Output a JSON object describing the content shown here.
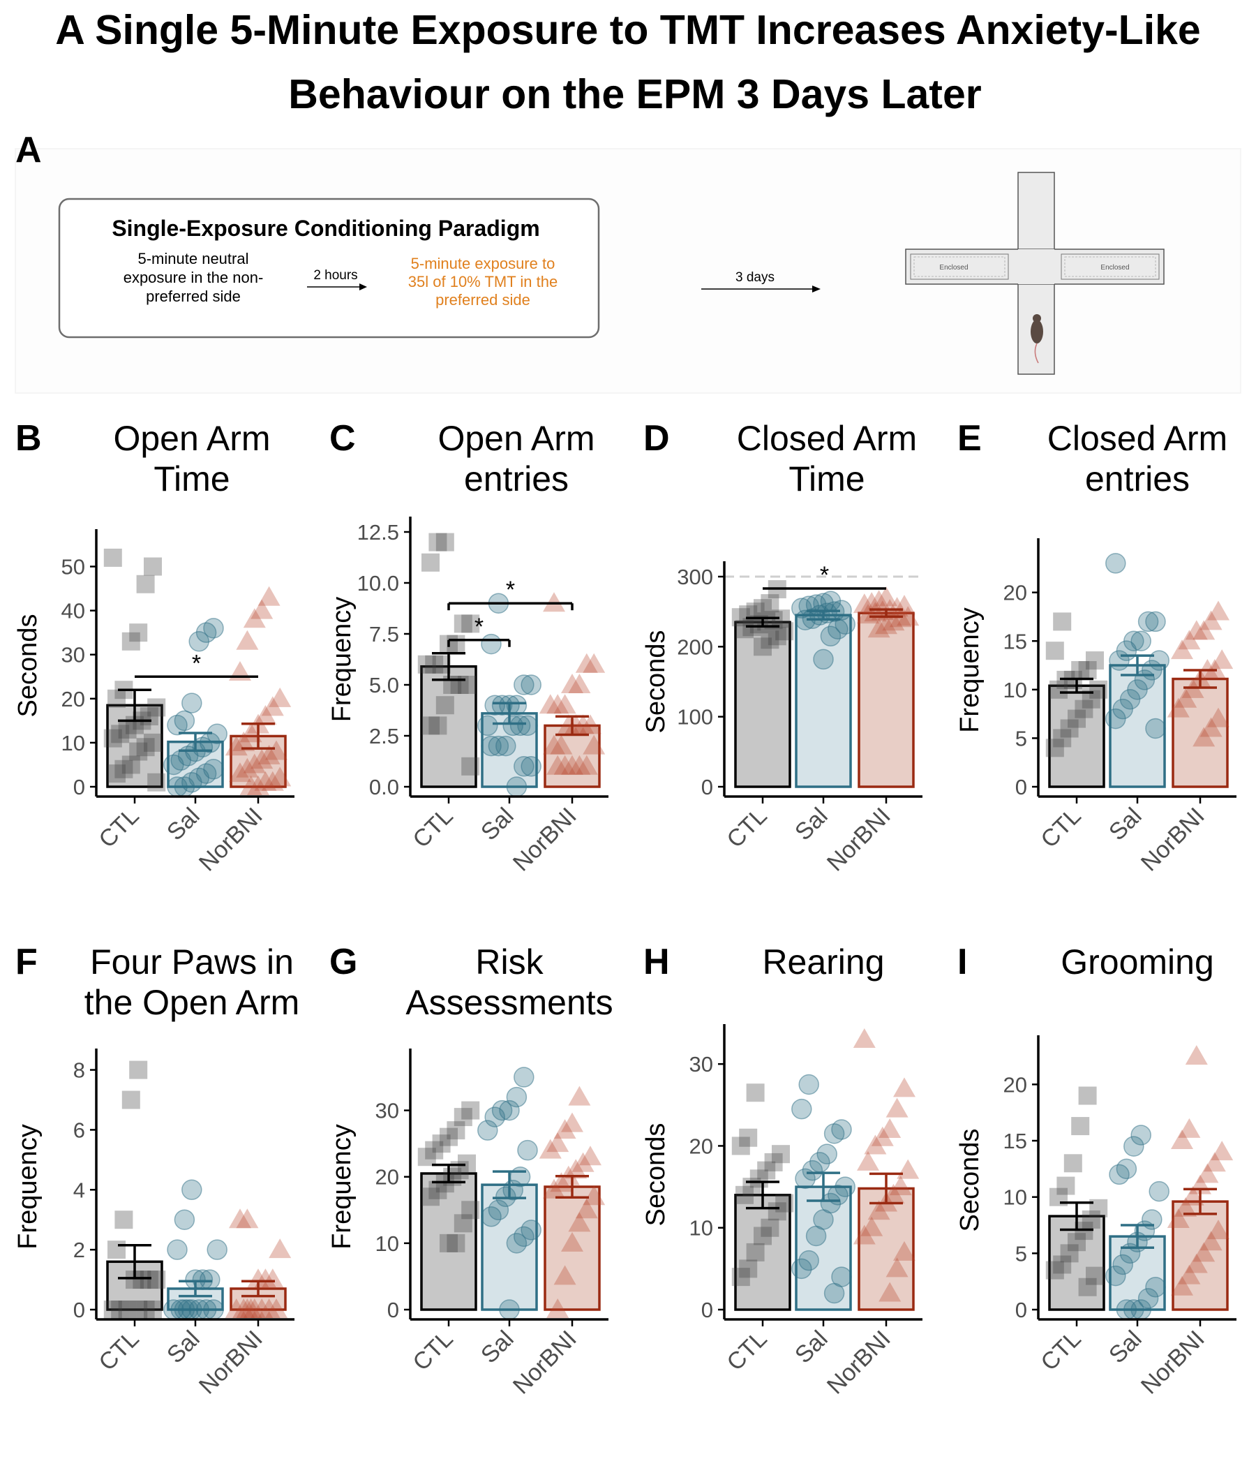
{
  "title": {
    "line1": "A Single 5-Minute Exposure to TMT Increases Anxiety-Like",
    "line2": "Behaviour on the EPM 3 Days Later"
  },
  "colors": {
    "CTL": "#000000",
    "Sal": "#2f6f85",
    "NorBNI": "#9a2a12",
    "highlight_text": "#e0801e"
  },
  "schematic": {
    "letter": "A",
    "box_title": "Single-Exposure Conditioning Paradigm",
    "step1": [
      "5-minute neutral",
      "exposure in the non-",
      "preferred side"
    ],
    "arrow1_label": "2 hours",
    "step2": [
      "5-minute exposure to",
      "35l of 10% TMT in the",
      "preferred side"
    ],
    "arrow2_label": "3 days",
    "maze_left_label": "Enclosed",
    "maze_right_label": "Enclosed",
    "icons": [
      "elevated-plus-maze-icon",
      "mouse-icon"
    ]
  },
  "chart_data": [
    {
      "panel": "B",
      "type": "bar",
      "title": [
        "Open Arm",
        "Time"
      ],
      "ylabel": "Seconds",
      "categories": [
        "CTL",
        "Sal",
        "NorBNI"
      ],
      "ylim": [
        0,
        55
      ],
      "yticks": [
        0,
        10,
        20,
        30,
        40,
        50
      ],
      "means": [
        18.5,
        10.2,
        11.5
      ],
      "errors": [
        3.5,
        2.0,
        2.8
      ],
      "points": [
        [
          52,
          50,
          46,
          35,
          33,
          22,
          20,
          18,
          16,
          15,
          14,
          13,
          12,
          11,
          10,
          9,
          8,
          5,
          4,
          3,
          1
        ],
        [
          36,
          35,
          33,
          19,
          15,
          14,
          12,
          10,
          9,
          8,
          7,
          6,
          5,
          4,
          3,
          2,
          1,
          0,
          0
        ],
        [
          43,
          40,
          38,
          33,
          26,
          20,
          18,
          16,
          14,
          12,
          10,
          9,
          8,
          7,
          6,
          5,
          4,
          3,
          2,
          1,
          1,
          0,
          0
        ]
      ],
      "comparisons": [
        {
          "from": "CTL",
          "to": "NorBNI",
          "y": 25,
          "label": "*",
          "bracket": false
        }
      ]
    },
    {
      "panel": "C",
      "type": "bar",
      "title": [
        "Open Arm",
        "entries"
      ],
      "ylabel": "Frequency",
      "categories": [
        "CTL",
        "Sal",
        "NorBNI"
      ],
      "ylim": [
        0,
        12.5
      ],
      "yticks": [
        "0.0",
        "2.5",
        "5.0",
        "7.5",
        "10.0",
        "12.5"
      ],
      "means": [
        5.9,
        3.6,
        3.0
      ],
      "errors": [
        0.65,
        0.5,
        0.45
      ],
      "points": [
        [
          12,
          12,
          11,
          8,
          8,
          7,
          7,
          6,
          6,
          6,
          5,
          5,
          5,
          4,
          3,
          3,
          1
        ],
        [
          9,
          7,
          5,
          5,
          4,
          4,
          4,
          4,
          3,
          3,
          3,
          3,
          2,
          2,
          2,
          1,
          1,
          0
        ],
        [
          9,
          6,
          6,
          5,
          5,
          4,
          4,
          4,
          3,
          3,
          3,
          3,
          2,
          2,
          2,
          1,
          1,
          1,
          1,
          1
        ]
      ],
      "comparisons": [
        {
          "from": "CTL",
          "to": "Sal",
          "y": 7.2,
          "label": "*",
          "bracket": true
        },
        {
          "from": "CTL",
          "to": "NorBNI",
          "y": 9.0,
          "label": "*",
          "bracket": true
        }
      ]
    },
    {
      "panel": "D",
      "type": "bar",
      "title": [
        "Closed Arm",
        "Time"
      ],
      "ylabel": "Seconds",
      "categories": [
        "CTL",
        "Sal",
        "NorBNI"
      ],
      "ylim": [
        0,
        300
      ],
      "yticks": [
        0,
        100,
        200,
        300
      ],
      "means": [
        235,
        245,
        248
      ],
      "errors": [
        6,
        6,
        5
      ],
      "reference_line": 300,
      "points": [
        [
          282,
          262,
          255,
          250,
          246,
          242,
          240,
          238,
          236,
          232,
          228,
          225,
          222,
          215,
          210,
          200
        ],
        [
          265,
          262,
          260,
          258,
          255,
          252,
          250,
          248,
          245,
          240,
          238,
          232,
          225,
          215,
          182
        ],
        [
          270,
          265,
          262,
          260,
          258,
          255,
          252,
          250,
          248,
          245,
          242,
          240,
          235,
          230,
          225
        ]
      ],
      "comparisons": [
        {
          "from": "CTL",
          "to": "NorBNI",
          "y": 283,
          "label": "*",
          "bracket": false
        }
      ]
    },
    {
      "panel": "E",
      "type": "bar",
      "title": [
        "Closed Arm",
        "entries"
      ],
      "ylabel": "Frequency",
      "categories": [
        "CTL",
        "Sal",
        "NorBNI"
      ],
      "ylim": [
        0,
        24
      ],
      "yticks": [
        0,
        5,
        10,
        15,
        20
      ],
      "means": [
        10.4,
        12.5,
        11.1
      ],
      "errors": [
        0.7,
        1.0,
        0.9
      ],
      "points": [
        [
          17,
          14,
          13,
          12,
          12,
          11,
          11,
          10,
          10,
          9,
          8,
          7,
          6,
          5,
          4
        ],
        [
          23,
          17,
          17,
          15,
          15,
          14,
          13,
          13,
          12,
          11,
          10,
          9,
          8,
          7,
          6
        ],
        [
          18,
          17,
          16,
          16,
          15,
          14,
          13,
          12,
          12,
          11,
          10,
          9,
          8,
          7,
          6,
          5
        ]
      ],
      "comparisons": []
    },
    {
      "panel": "F",
      "type": "bar",
      "title": [
        "Four Paws in",
        "the Open Arm"
      ],
      "ylabel": "Frequency",
      "categories": [
        "CTL",
        "Sal",
        "NorBNI"
      ],
      "ylim": [
        0,
        8.2
      ],
      "yticks": [
        0,
        2,
        4,
        6,
        8
      ],
      "means": [
        1.6,
        0.7,
        0.7
      ],
      "errors": [
        0.55,
        0.25,
        0.25
      ],
      "points": [
        [
          8,
          7,
          3,
          2,
          1,
          1,
          1,
          1,
          0,
          0,
          0,
          0,
          0,
          0
        ],
        [
          4,
          3,
          2,
          2,
          1,
          1,
          1,
          0,
          0,
          0,
          0,
          0,
          0,
          0,
          0
        ],
        [
          3,
          3,
          2,
          1,
          1,
          1,
          0,
          0,
          0,
          0,
          0,
          0,
          0,
          0
        ]
      ],
      "comparisons": []
    },
    {
      "panel": "G",
      "type": "bar",
      "title": [
        "Risk",
        "Assessments"
      ],
      "ylabel": "Frequency",
      "categories": [
        "CTL",
        "Sal",
        "NorBNI"
      ],
      "ylim": [
        0,
        37
      ],
      "yticks": [
        0,
        10,
        20,
        30
      ],
      "means": [
        20.5,
        18.8,
        18.5
      ],
      "errors": [
        1.3,
        2.0,
        1.6
      ],
      "points": [
        [
          30,
          29,
          27,
          26,
          25,
          24,
          23,
          22,
          21,
          20,
          19,
          18,
          17,
          15,
          13,
          10,
          10
        ],
        [
          35,
          32,
          30,
          30,
          29,
          27,
          24,
          20,
          18,
          17,
          15,
          14,
          12,
          11,
          10,
          0
        ],
        [
          32,
          28,
          27,
          25,
          24,
          23,
          22,
          21,
          20,
          19,
          18,
          17,
          15,
          13,
          10,
          5,
          0
        ]
      ],
      "comparisons": []
    },
    {
      "panel": "H",
      "type": "bar",
      "title": [
        "Rearing"
      ],
      "ylabel": "Seconds",
      "categories": [
        "CTL",
        "Sal",
        "NorBNI"
      ],
      "ylim": [
        0,
        33
      ],
      "yticks": [
        0,
        10,
        20,
        30
      ],
      "means": [
        14.0,
        15.0,
        14.8
      ],
      "errors": [
        1.6,
        1.7,
        1.8
      ],
      "points": [
        [
          26.5,
          21,
          20,
          19,
          18,
          17,
          16,
          15,
          14,
          13,
          12,
          10,
          9,
          7,
          5,
          4
        ],
        [
          27.5,
          24.5,
          22,
          21.5,
          19,
          18,
          17,
          16,
          15,
          14,
          13,
          11,
          9,
          6,
          5,
          4,
          2
        ],
        [
          33,
          27,
          24.5,
          22,
          21,
          20,
          18,
          17,
          15,
          14,
          13,
          12,
          10,
          9,
          7,
          5,
          2
        ]
      ],
      "comparisons": []
    },
    {
      "panel": "I",
      "type": "bar",
      "title": [
        "Grooming"
      ],
      "ylabel": "Seconds",
      "categories": [
        "CTL",
        "Sal",
        "NorBNI"
      ],
      "ylim": [
        0,
        23
      ],
      "yticks": [
        0,
        5,
        10,
        15,
        20
      ],
      "means": [
        8.3,
        6.5,
        9.6
      ],
      "errors": [
        1.2,
        1.0,
        1.1
      ],
      "points": [
        [
          19,
          16.3,
          13,
          11,
          10,
          9,
          8,
          7,
          6,
          5,
          4,
          3.5,
          3,
          2
        ],
        [
          15.5,
          14.5,
          12.5,
          12,
          10.5,
          8,
          7,
          6,
          5,
          4,
          3,
          2,
          1,
          0,
          0,
          0
        ],
        [
          22.5,
          16,
          15,
          14,
          13,
          12,
          11,
          10,
          9,
          8,
          7,
          6,
          5,
          4,
          3,
          2
        ]
      ],
      "comparisons": []
    }
  ]
}
